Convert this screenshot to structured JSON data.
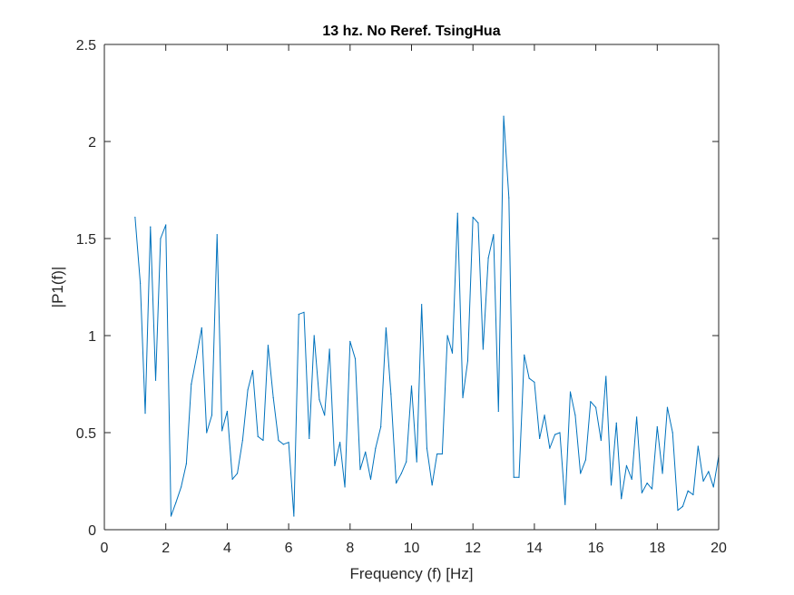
{
  "chart_data": {
    "type": "line",
    "title": "13 hz. No Reref. TsingHua",
    "xlabel": "Frequency (f) [Hz]",
    "ylabel": "|P1(f)|",
    "xlim": [
      0,
      20
    ],
    "ylim": [
      0,
      2.5
    ],
    "xticks": [
      0,
      2,
      4,
      6,
      8,
      10,
      12,
      14,
      16,
      18,
      20
    ],
    "yticks": [
      0,
      0.5,
      1,
      1.5,
      2,
      2.5
    ],
    "xtick_labels": [
      "0",
      "2",
      "4",
      "6",
      "8",
      "10",
      "12",
      "14",
      "16",
      "18",
      "20"
    ],
    "ytick_labels": [
      "0",
      "0.5",
      "1",
      "1.5",
      "2",
      "2.5"
    ],
    "grid": false,
    "colors": {
      "line": "#0072BD",
      "axis": "#262626",
      "background": "#ffffff"
    },
    "series": [
      {
        "x": [
          1.0,
          1.17,
          1.33,
          1.5,
          1.67,
          1.83,
          2.0,
          2.17,
          2.33,
          2.5,
          2.67,
          2.83,
          3.0,
          3.17,
          3.33,
          3.5,
          3.67,
          3.83,
          4.0,
          4.17,
          4.33,
          4.5,
          4.67,
          4.83,
          5.0,
          5.17,
          5.33,
          5.5,
          5.67,
          5.83,
          6.0,
          6.17,
          6.33,
          6.5,
          6.67,
          6.83,
          7.0,
          7.17,
          7.33,
          7.5,
          7.67,
          7.83,
          8.0,
          8.17,
          8.33,
          8.5,
          8.67,
          8.83,
          9.0,
          9.17,
          9.33,
          9.5,
          9.67,
          9.83,
          10.0,
          10.17,
          10.33,
          10.5,
          10.67,
          10.83,
          11.0,
          11.17,
          11.33,
          11.5,
          11.67,
          11.83,
          12.0,
          12.17,
          12.33,
          12.5,
          12.67,
          12.83,
          13.0,
          13.17,
          13.33,
          13.5,
          13.67,
          13.83,
          14.0,
          14.17,
          14.33,
          14.5,
          14.67,
          14.83,
          15.0,
          15.17,
          15.33,
          15.5,
          15.67,
          15.83,
          16.0,
          16.17,
          16.33,
          16.5,
          16.67,
          16.83,
          17.0,
          17.17,
          17.33,
          17.5,
          17.67,
          17.83,
          18.0,
          18.17,
          18.33,
          18.5,
          18.67,
          18.83,
          19.0,
          19.17,
          19.33,
          19.5,
          19.67,
          19.83,
          20.0
        ],
        "y": [
          1.61,
          1.27,
          0.6,
          1.56,
          0.77,
          1.5,
          1.57,
          0.07,
          0.14,
          0.22,
          0.34,
          0.75,
          0.89,
          1.04,
          0.5,
          0.59,
          1.52,
          0.51,
          0.61,
          0.26,
          0.29,
          0.46,
          0.72,
          0.82,
          0.48,
          0.46,
          0.95,
          0.68,
          0.46,
          0.44,
          0.45,
          0.07,
          1.11,
          1.12,
          0.47,
          1.0,
          0.67,
          0.59,
          0.93,
          0.33,
          0.45,
          0.22,
          0.97,
          0.88,
          0.31,
          0.4,
          0.26,
          0.42,
          0.53,
          1.04,
          0.7,
          0.24,
          0.29,
          0.35,
          0.74,
          0.35,
          1.16,
          0.42,
          0.23,
          0.39,
          0.39,
          1.0,
          0.91,
          1.63,
          0.68,
          0.87,
          1.61,
          1.58,
          0.93,
          1.4,
          1.52,
          0.61,
          2.13,
          1.71,
          0.27,
          0.27,
          0.9,
          0.78,
          0.76,
          0.47,
          0.59,
          0.42,
          0.49,
          0.5,
          0.13,
          0.71,
          0.59,
          0.29,
          0.36,
          0.66,
          0.63,
          0.46,
          0.79,
          0.23,
          0.55,
          0.16,
          0.33,
          0.26,
          0.58,
          0.19,
          0.24,
          0.21,
          0.53,
          0.29,
          0.63,
          0.5,
          0.1,
          0.12,
          0.2,
          0.18,
          0.43,
          0.25,
          0.3,
          0.22,
          0.38
        ]
      }
    ]
  }
}
